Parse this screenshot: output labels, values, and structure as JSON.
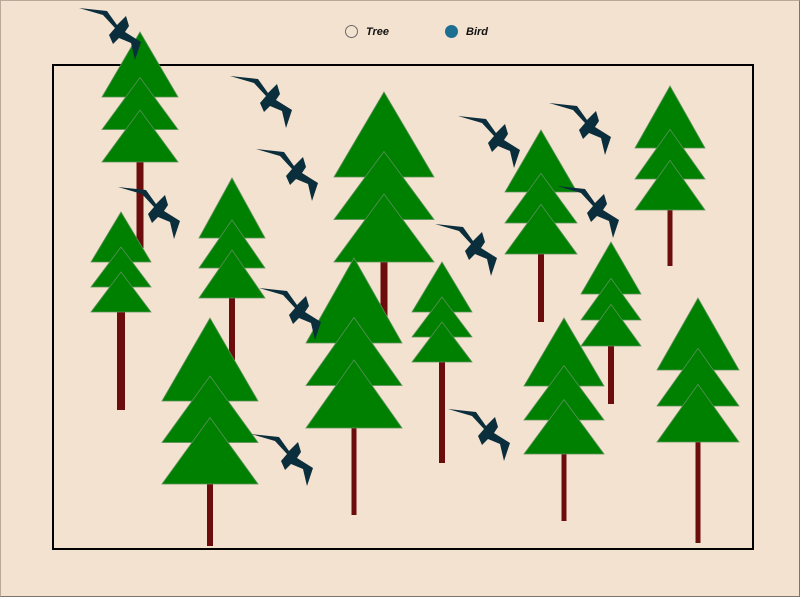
{
  "legend": {
    "options": [
      {
        "id": "tree",
        "label": "Tree",
        "selected": false
      },
      {
        "id": "bird",
        "label": "Bird",
        "selected": true
      }
    ],
    "selected_color": "#1d6f91"
  },
  "scene": {
    "background_color": "#f4e2d0",
    "tree_foliage_color": "#008000",
    "tree_trunk_color": "#6b0d0d",
    "bird_color": "#0b2e3c",
    "tree_count": 14,
    "bird_count": 11
  }
}
